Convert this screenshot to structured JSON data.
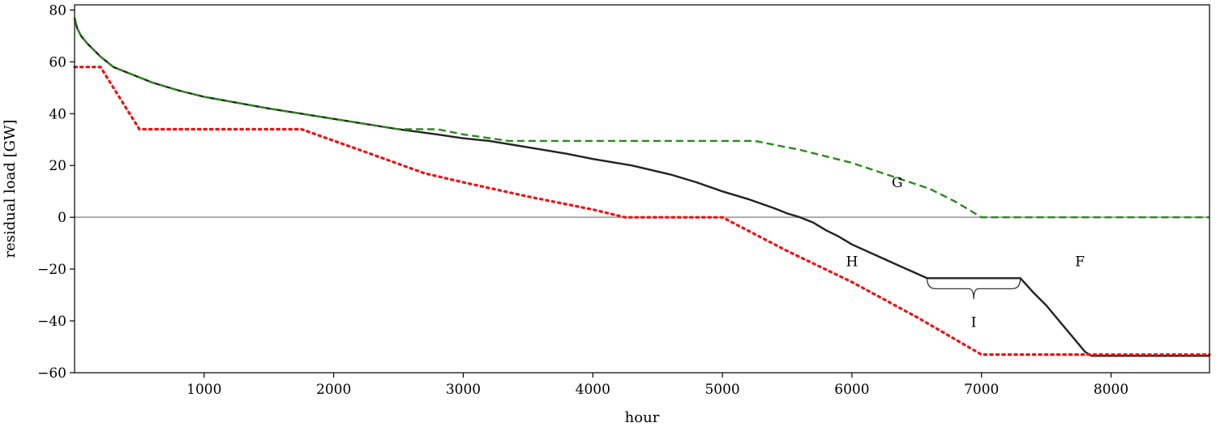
{
  "chart_data": {
    "type": "line",
    "title": "",
    "xlabel": "hour",
    "ylabel": "residual load [GW]",
    "xlim": [
      0,
      8760
    ],
    "ylim": [
      -60,
      82
    ],
    "xticks": [
      1000,
      2000,
      3000,
      4000,
      5000,
      6000,
      7000,
      8000
    ],
    "yticks": [
      -60,
      -40,
      -20,
      0,
      20,
      40,
      60,
      80
    ],
    "grid": false,
    "legend": "none",
    "zero_line": {
      "y": 0,
      "color": "#aaaaaa"
    },
    "series": [
      {
        "color": "#222222",
        "style": "solid",
        "x": [
          0,
          20,
          50,
          100,
          200,
          300,
          400,
          500,
          600,
          800,
          1000,
          1500,
          2000,
          2500,
          2800,
          3000,
          3200,
          3500,
          3800,
          4000,
          4300,
          4600,
          4800,
          5000,
          5200,
          5400,
          5500,
          5600,
          5700,
          5800,
          5900,
          6000,
          6200,
          6400,
          6580,
          7300,
          7400,
          7500,
          7600,
          7700,
          7800,
          7850,
          8000,
          8760
        ],
        "y": [
          77,
          73,
          70,
          67,
          62,
          58,
          56,
          54,
          52,
          49,
          46.5,
          42,
          38,
          34,
          32,
          30.5,
          29.5,
          27,
          24.5,
          22.5,
          20,
          16.5,
          13.5,
          10,
          7,
          3.5,
          1.5,
          0,
          -2,
          -5,
          -7.5,
          -10.5,
          -15,
          -19.5,
          -23.5,
          -23.5,
          -29,
          -34,
          -40,
          -46,
          -52,
          -53.5,
          -53.5,
          -53.5
        ]
      },
      {
        "color": "#2a8a1a",
        "style": "dashed",
        "x": [
          0,
          20,
          50,
          100,
          200,
          300,
          400,
          500,
          600,
          800,
          1000,
          1500,
          2000,
          2500,
          2800,
          3000,
          3350,
          5250,
          5600,
          6000,
          6300,
          6600,
          6800,
          7000,
          8760
        ],
        "y": [
          77,
          73,
          70,
          67,
          62,
          58,
          56,
          54,
          52,
          49,
          46.5,
          42,
          38,
          34,
          34,
          32,
          29.5,
          29.5,
          26,
          21,
          16,
          11,
          6,
          0,
          0
        ]
      },
      {
        "color": "#ee1111",
        "style": "dotted",
        "x": [
          0,
          200,
          500,
          1750,
          2200,
          2700,
          3000,
          3500,
          4000,
          4250,
          5000,
          5500,
          6000,
          6500,
          7000,
          8760
        ],
        "y": [
          58,
          58,
          34,
          34,
          26,
          17,
          13.5,
          8,
          3,
          0,
          0,
          -13,
          -25,
          -38.5,
          -53,
          -53
        ]
      }
    ],
    "annotations": [
      {
        "text": "G",
        "x": 6350,
        "y": 13.5
      },
      {
        "text": "H",
        "x": 6000,
        "y": -17
      },
      {
        "text": "F",
        "x": 7760,
        "y": -17
      },
      {
        "text": "I",
        "x": 6940,
        "y": -40.5
      }
    ],
    "brace": {
      "x_start": 6580,
      "x_end": 7300,
      "y": -23.5
    }
  }
}
